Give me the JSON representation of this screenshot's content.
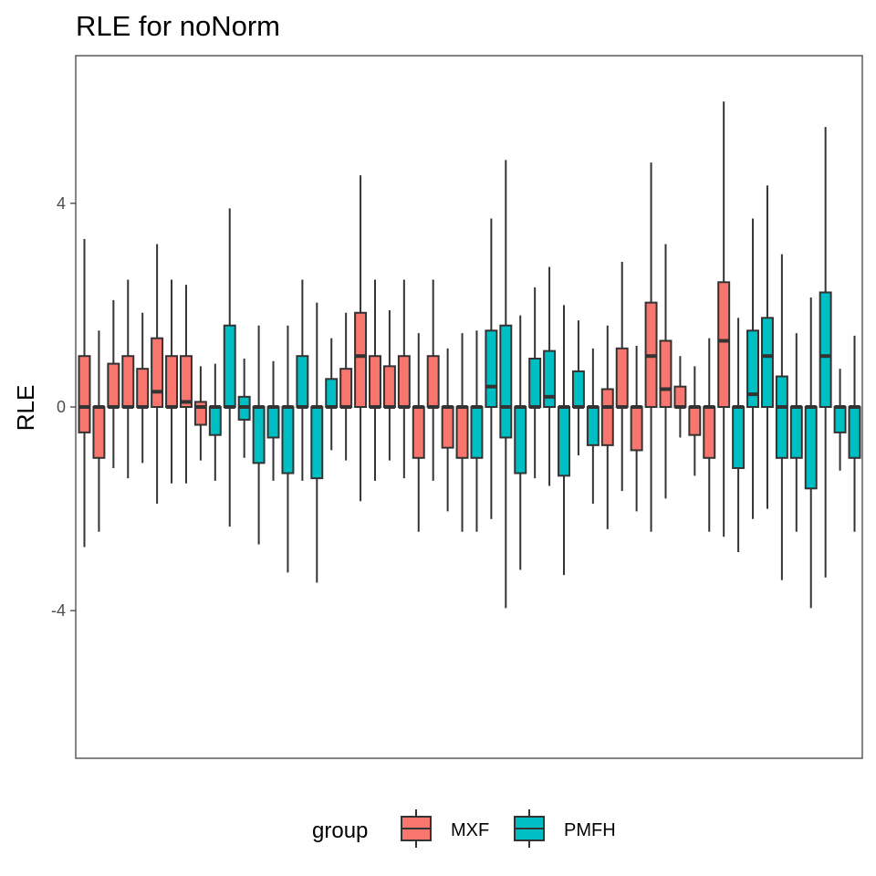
{
  "chart_data": {
    "type": "boxplot",
    "title": "RLE for noNorm",
    "xlabel": "",
    "ylabel": "RLE",
    "ylim": [
      -6.9,
      6.9
    ],
    "y_ticks": [
      {
        "value": 4,
        "label": "4"
      },
      {
        "value": 0,
        "label": "0"
      },
      {
        "value": -4,
        "label": "-4"
      }
    ],
    "grid": false,
    "legend": {
      "title": "group",
      "position": "bottom",
      "entries": [
        {
          "name": "MXF",
          "color": "#F8766D"
        },
        {
          "name": "PMFH",
          "color": "#00BFC4"
        }
      ]
    },
    "colors": {
      "MXF": "#F8766D",
      "PMFH": "#00BFC4",
      "outline": "#333333"
    },
    "boxes": [
      {
        "group": "MXF",
        "whisker_low": -2.75,
        "q1": -0.5,
        "median": 0.0,
        "q3": 1.0,
        "whisker_high": 3.3
      },
      {
        "group": "MXF",
        "whisker_low": -2.45,
        "q1": -1.0,
        "median": 0.0,
        "q3": 0.0,
        "whisker_high": 1.5
      },
      {
        "group": "MXF",
        "whisker_low": -1.2,
        "q1": 0.0,
        "median": 0.0,
        "q3": 0.85,
        "whisker_high": 2.1
      },
      {
        "group": "MXF",
        "whisker_low": -1.4,
        "q1": 0.0,
        "median": 0.0,
        "q3": 1.0,
        "whisker_high": 2.5
      },
      {
        "group": "MXF",
        "whisker_low": -1.1,
        "q1": 0.0,
        "median": 0.0,
        "q3": 0.75,
        "whisker_high": 1.85
      },
      {
        "group": "MXF",
        "whisker_low": -1.9,
        "q1": 0.0,
        "median": 0.3,
        "q3": 1.35,
        "whisker_high": 3.2
      },
      {
        "group": "MXF",
        "whisker_low": -1.5,
        "q1": 0.0,
        "median": 0.0,
        "q3": 1.0,
        "whisker_high": 2.5
      },
      {
        "group": "MXF",
        "whisker_low": -1.5,
        "q1": 0.0,
        "median": 0.1,
        "q3": 1.0,
        "whisker_high": 2.4
      },
      {
        "group": "MXF",
        "whisker_low": -1.05,
        "q1": -0.35,
        "median": 0.0,
        "q3": 0.1,
        "whisker_high": 0.8
      },
      {
        "group": "PMFH",
        "whisker_low": -1.45,
        "q1": -0.55,
        "median": 0.0,
        "q3": 0.0,
        "whisker_high": 0.85
      },
      {
        "group": "PMFH",
        "whisker_low": -2.35,
        "q1": 0.0,
        "median": 0.0,
        "q3": 1.6,
        "whisker_high": 3.9
      },
      {
        "group": "PMFH",
        "whisker_low": -1.0,
        "q1": -0.25,
        "median": 0.0,
        "q3": 0.2,
        "whisker_high": 0.95
      },
      {
        "group": "PMFH",
        "whisker_low": -2.7,
        "q1": -1.1,
        "median": 0.0,
        "q3": 0.0,
        "whisker_high": 1.6
      },
      {
        "group": "PMFH",
        "whisker_low": -1.45,
        "q1": -0.6,
        "median": 0.0,
        "q3": 0.0,
        "whisker_high": 0.9
      },
      {
        "group": "PMFH",
        "whisker_low": -3.25,
        "q1": -1.3,
        "median": 0.0,
        "q3": 0.0,
        "whisker_high": 1.6
      },
      {
        "group": "PMFH",
        "whisker_low": -1.45,
        "q1": 0.0,
        "median": 0.0,
        "q3": 1.0,
        "whisker_high": 2.5
      },
      {
        "group": "PMFH",
        "whisker_low": -3.45,
        "q1": -1.4,
        "median": 0.0,
        "q3": 0.0,
        "whisker_high": 2.05
      },
      {
        "group": "PMFH",
        "whisker_low": -0.85,
        "q1": 0.0,
        "median": 0.0,
        "q3": 0.55,
        "whisker_high": 1.35
      },
      {
        "group": "MXF",
        "whisker_low": -1.05,
        "q1": 0.0,
        "median": 0.0,
        "q3": 0.75,
        "whisker_high": 1.85
      },
      {
        "group": "MXF",
        "whisker_low": -1.85,
        "q1": 0.0,
        "median": 1.0,
        "q3": 1.85,
        "whisker_high": 4.55
      },
      {
        "group": "MXF",
        "whisker_low": -1.45,
        "q1": 0.0,
        "median": 0.0,
        "q3": 1.0,
        "whisker_high": 2.5
      },
      {
        "group": "MXF",
        "whisker_low": -1.05,
        "q1": 0.0,
        "median": 0.0,
        "q3": 0.8,
        "whisker_high": 1.9
      },
      {
        "group": "MXF",
        "whisker_low": -1.4,
        "q1": 0.0,
        "median": 0.0,
        "q3": 1.0,
        "whisker_high": 2.5
      },
      {
        "group": "MXF",
        "whisker_low": -2.45,
        "q1": -1.0,
        "median": 0.0,
        "q3": 0.0,
        "whisker_high": 1.45
      },
      {
        "group": "MXF",
        "whisker_low": -1.45,
        "q1": 0.0,
        "median": 0.0,
        "q3": 1.0,
        "whisker_high": 2.5
      },
      {
        "group": "MXF",
        "whisker_low": -2.05,
        "q1": -0.8,
        "median": 0.0,
        "q3": 0.0,
        "whisker_high": 1.15
      },
      {
        "group": "MXF",
        "whisker_low": -2.45,
        "q1": -1.0,
        "median": 0.0,
        "q3": 0.0,
        "whisker_high": 1.45
      },
      {
        "group": "PMFH",
        "whisker_low": -2.45,
        "q1": -1.0,
        "median": 0.0,
        "q3": 0.0,
        "whisker_high": 1.5
      },
      {
        "group": "PMFH",
        "whisker_low": -2.2,
        "q1": 0.0,
        "median": 0.4,
        "q3": 1.5,
        "whisker_high": 3.7
      },
      {
        "group": "PMFH",
        "whisker_low": -3.95,
        "q1": -0.6,
        "median": 0.0,
        "q3": 1.6,
        "whisker_high": 4.85
      },
      {
        "group": "PMFH",
        "whisker_low": -3.2,
        "q1": -1.3,
        "median": 0.0,
        "q3": 0.0,
        "whisker_high": 1.8
      },
      {
        "group": "PMFH",
        "whisker_low": -1.4,
        "q1": 0.0,
        "median": 0.0,
        "q3": 0.95,
        "whisker_high": 2.35
      },
      {
        "group": "PMFH",
        "whisker_low": -1.55,
        "q1": 0.0,
        "median": 0.2,
        "q3": 1.1,
        "whisker_high": 2.75
      },
      {
        "group": "PMFH",
        "whisker_low": -3.3,
        "q1": -1.35,
        "median": 0.0,
        "q3": 0.0,
        "whisker_high": 2.0
      },
      {
        "group": "PMFH",
        "whisker_low": -0.95,
        "q1": 0.0,
        "median": 0.0,
        "q3": 0.7,
        "whisker_high": 1.7
      },
      {
        "group": "PMFH",
        "whisker_low": -1.9,
        "q1": -0.75,
        "median": 0.0,
        "q3": 0.0,
        "whisker_high": 1.15
      },
      {
        "group": "MXF",
        "whisker_low": -2.4,
        "q1": -0.75,
        "median": 0.0,
        "q3": 0.35,
        "whisker_high": 1.6
      },
      {
        "group": "MXF",
        "whisker_low": -1.65,
        "q1": 0.0,
        "median": 0.0,
        "q3": 1.15,
        "whisker_high": 2.85
      },
      {
        "group": "MXF",
        "whisker_low": -2.05,
        "q1": -0.85,
        "median": 0.0,
        "q3": 0.0,
        "whisker_high": 1.2
      },
      {
        "group": "MXF",
        "whisker_low": -2.45,
        "q1": 0.0,
        "median": 1.0,
        "q3": 2.05,
        "whisker_high": 4.8
      },
      {
        "group": "MXF",
        "whisker_low": -1.8,
        "q1": 0.0,
        "median": 0.35,
        "q3": 1.3,
        "whisker_high": 3.2
      },
      {
        "group": "MXF",
        "whisker_low": -0.6,
        "q1": 0.0,
        "median": 0.0,
        "q3": 0.4,
        "whisker_high": 1.0
      },
      {
        "group": "MXF",
        "whisker_low": -1.35,
        "q1": -0.55,
        "median": 0.0,
        "q3": 0.0,
        "whisker_high": 0.8
      },
      {
        "group": "MXF",
        "whisker_low": -2.45,
        "q1": -1.0,
        "median": 0.0,
        "q3": 0.0,
        "whisker_high": 1.35
      },
      {
        "group": "MXF",
        "whisker_low": -2.55,
        "q1": 0.0,
        "median": 1.3,
        "q3": 2.45,
        "whisker_high": 6.0
      },
      {
        "group": "PMFH",
        "whisker_low": -2.85,
        "q1": -1.2,
        "median": 0.0,
        "q3": 0.0,
        "whisker_high": 1.75
      },
      {
        "group": "PMFH",
        "whisker_low": -2.2,
        "q1": 0.0,
        "median": 0.25,
        "q3": 1.5,
        "whisker_high": 3.7
      },
      {
        "group": "PMFH",
        "whisker_low": -2.0,
        "q1": 0.0,
        "median": 1.0,
        "q3": 1.75,
        "whisker_high": 4.35
      },
      {
        "group": "PMFH",
        "whisker_low": -3.4,
        "q1": -1.0,
        "median": 0.0,
        "q3": 0.6,
        "whisker_high": 3.0
      },
      {
        "group": "PMFH",
        "whisker_low": -2.45,
        "q1": -1.0,
        "median": 0.0,
        "q3": 0.0,
        "whisker_high": 1.45
      },
      {
        "group": "PMFH",
        "whisker_low": -3.95,
        "q1": -1.6,
        "median": 0.0,
        "q3": 0.0,
        "whisker_high": 2.15
      },
      {
        "group": "PMFH",
        "whisker_low": -3.35,
        "q1": 0.0,
        "median": 1.0,
        "q3": 2.25,
        "whisker_high": 5.5
      },
      {
        "group": "PMFH",
        "whisker_low": -1.25,
        "q1": -0.5,
        "median": 0.0,
        "q3": 0.0,
        "whisker_high": 0.75
      },
      {
        "group": "PMFH",
        "whisker_low": -2.45,
        "q1": -1.0,
        "median": 0.0,
        "q3": 0.0,
        "whisker_high": 1.4
      }
    ]
  }
}
